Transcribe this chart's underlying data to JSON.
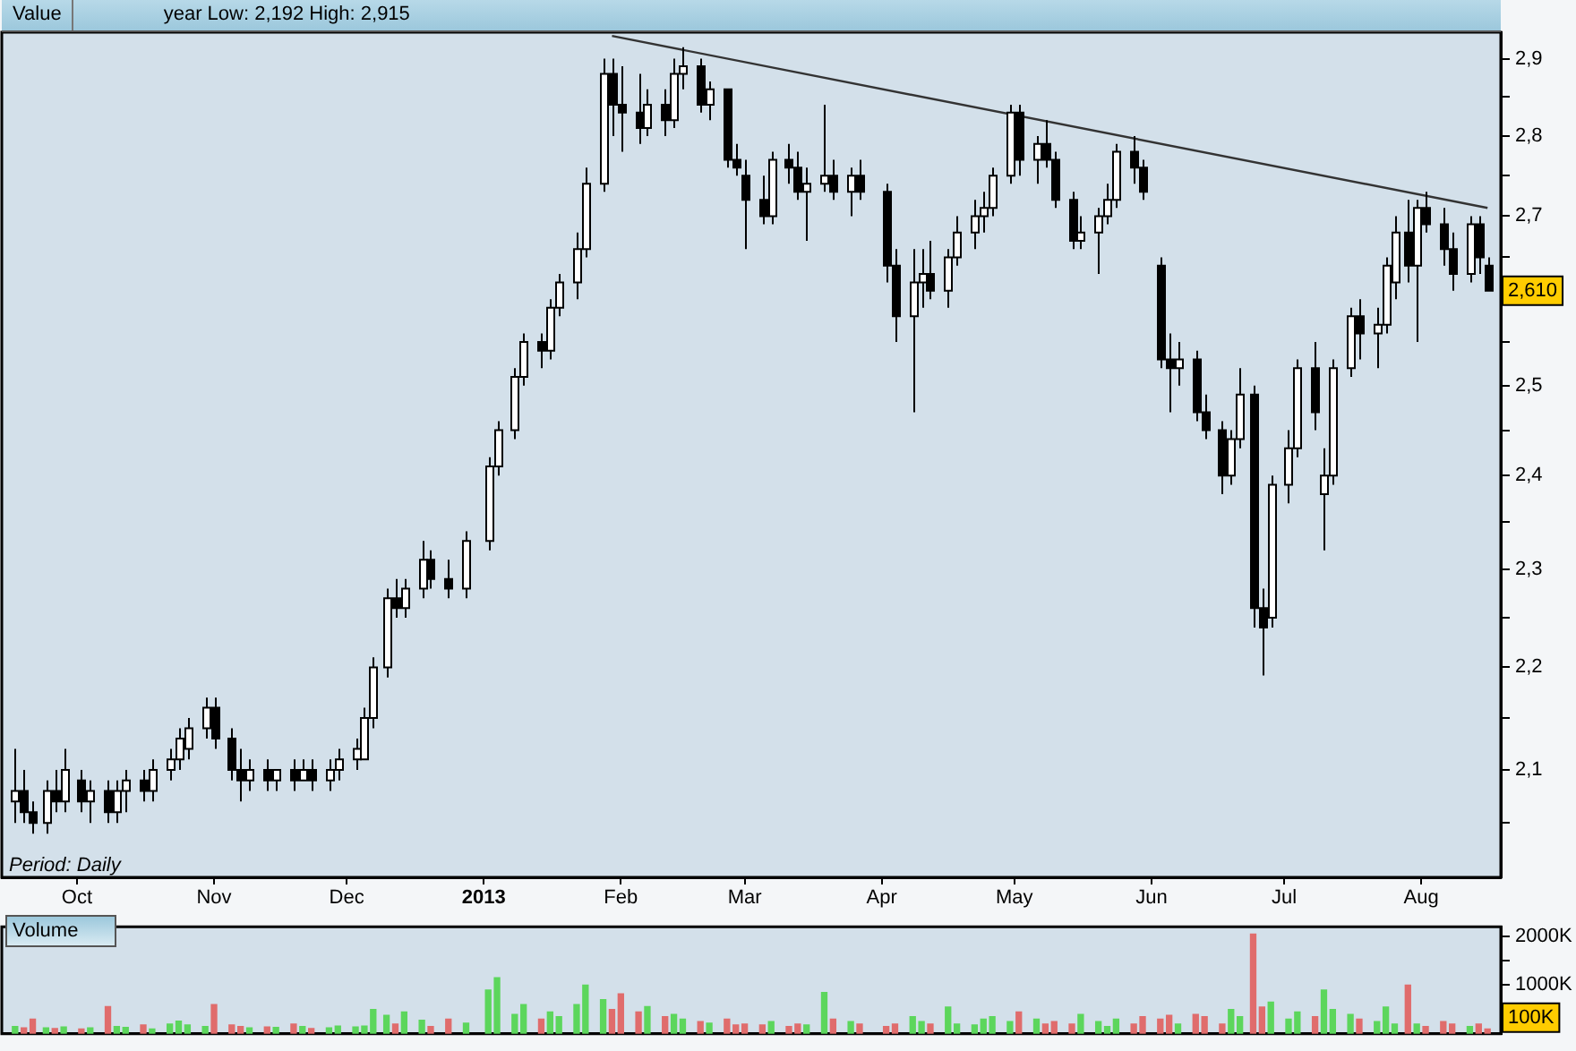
{
  "chart_data": [
    {
      "type": "candlestick",
      "title": "Value",
      "subtitle": "year Low: 2,192 High: 2,915",
      "log": true,
      "legend": false,
      "x": [
        "2012-09-17",
        "2012-09-19",
        "2012-09-21",
        "2012-09-24",
        "2012-09-26",
        "2012-09-28",
        "2012-10-02",
        "2012-10-04",
        "2012-10-08",
        "2012-10-10",
        "2012-10-12",
        "2012-10-16",
        "2012-10-18",
        "2012-10-22",
        "2012-10-24",
        "2012-10-26",
        "2012-10-30",
        "2012-11-01",
        "2012-11-05",
        "2012-11-07",
        "2012-11-09",
        "2012-11-13",
        "2012-11-15",
        "2012-11-19",
        "2012-11-21",
        "2012-11-23",
        "2012-11-27",
        "2012-11-29",
        "2012-12-03",
        "2012-12-05",
        "2012-12-07",
        "2012-12-10",
        "2012-12-12",
        "2012-12-14",
        "2012-12-18",
        "2012-12-20",
        "2012-12-24",
        "2012-12-28",
        "2013-01-02",
        "2013-01-04",
        "2013-01-08",
        "2013-01-10",
        "2013-01-14",
        "2013-01-16",
        "2013-01-18",
        "2013-01-22",
        "2013-01-24",
        "2013-01-28",
        "2013-01-30",
        "2013-02-01",
        "2013-02-05",
        "2013-02-07",
        "2013-02-11",
        "2013-02-13",
        "2013-02-15",
        "2013-02-19",
        "2013-02-21",
        "2013-02-25",
        "2013-02-27",
        "2013-03-01",
        "2013-03-05",
        "2013-03-07",
        "2013-03-11",
        "2013-03-13",
        "2013-03-15",
        "2013-03-19",
        "2013-03-21",
        "2013-03-25",
        "2013-03-27",
        "2013-04-02",
        "2013-04-04",
        "2013-04-08",
        "2013-04-10",
        "2013-04-12",
        "2013-04-16",
        "2013-04-18",
        "2013-04-22",
        "2013-04-24",
        "2013-04-26",
        "2013-04-30",
        "2013-05-02",
        "2013-05-06",
        "2013-05-08",
        "2013-05-10",
        "2013-05-14",
        "2013-05-16",
        "2013-05-20",
        "2013-05-22",
        "2013-05-24",
        "2013-05-28",
        "2013-05-30",
        "2013-06-03",
        "2013-06-05",
        "2013-06-07",
        "2013-06-11",
        "2013-06-13",
        "2013-06-17",
        "2013-06-19",
        "2013-06-21",
        "2013-06-24",
        "2013-06-26",
        "2013-06-28",
        "2013-07-02",
        "2013-07-04",
        "2013-07-08",
        "2013-07-10",
        "2013-07-12",
        "2013-07-16",
        "2013-07-18",
        "2013-07-22",
        "2013-07-24",
        "2013-07-26",
        "2013-07-29",
        "2013-07-31",
        "2013-08-02",
        "2013-08-06",
        "2013-08-08",
        "2013-08-12",
        "2013-08-14",
        "2013-08-16"
      ],
      "ohlc": [
        [
          2.07,
          2.12,
          2.05,
          2.08
        ],
        [
          2.08,
          2.1,
          2.05,
          2.06
        ],
        [
          2.06,
          2.07,
          2.04,
          2.05
        ],
        [
          2.05,
          2.09,
          2.04,
          2.08
        ],
        [
          2.08,
          2.1,
          2.06,
          2.07
        ],
        [
          2.07,
          2.12,
          2.06,
          2.1
        ],
        [
          2.09,
          2.1,
          2.06,
          2.07
        ],
        [
          2.07,
          2.09,
          2.05,
          2.08
        ],
        [
          2.08,
          2.09,
          2.05,
          2.06
        ],
        [
          2.06,
          2.09,
          2.05,
          2.08
        ],
        [
          2.08,
          2.1,
          2.06,
          2.09
        ],
        [
          2.09,
          2.1,
          2.07,
          2.08
        ],
        [
          2.08,
          2.11,
          2.07,
          2.1
        ],
        [
          2.1,
          2.12,
          2.09,
          2.11
        ],
        [
          2.11,
          2.14,
          2.1,
          2.13
        ],
        [
          2.12,
          2.15,
          2.11,
          2.14
        ],
        [
          2.14,
          2.17,
          2.13,
          2.16
        ],
        [
          2.16,
          2.17,
          2.12,
          2.13
        ],
        [
          2.13,
          2.14,
          2.09,
          2.1
        ],
        [
          2.1,
          2.12,
          2.07,
          2.09
        ],
        [
          2.09,
          2.11,
          2.08,
          2.1
        ],
        [
          2.1,
          2.11,
          2.08,
          2.09
        ],
        [
          2.09,
          2.1,
          2.08,
          2.1
        ],
        [
          2.1,
          2.11,
          2.08,
          2.09
        ],
        [
          2.09,
          2.11,
          2.09,
          2.1
        ],
        [
          2.1,
          2.11,
          2.08,
          2.09
        ],
        [
          2.09,
          2.11,
          2.08,
          2.1
        ],
        [
          2.1,
          2.12,
          2.09,
          2.11
        ],
        [
          2.11,
          2.13,
          2.1,
          2.12
        ],
        [
          2.11,
          2.16,
          2.11,
          2.15
        ],
        [
          2.15,
          2.21,
          2.14,
          2.2
        ],
        [
          2.2,
          2.28,
          2.19,
          2.27
        ],
        [
          2.27,
          2.29,
          2.25,
          2.26
        ],
        [
          2.26,
          2.29,
          2.25,
          2.28
        ],
        [
          2.28,
          2.33,
          2.27,
          2.31
        ],
        [
          2.31,
          2.32,
          2.28,
          2.29
        ],
        [
          2.29,
          2.31,
          2.27,
          2.28
        ],
        [
          2.28,
          2.34,
          2.27,
          2.33
        ],
        [
          2.33,
          2.42,
          2.32,
          2.41
        ],
        [
          2.41,
          2.46,
          2.4,
          2.45
        ],
        [
          2.45,
          2.52,
          2.44,
          2.51
        ],
        [
          2.51,
          2.56,
          2.5,
          2.55
        ],
        [
          2.55,
          2.56,
          2.52,
          2.54
        ],
        [
          2.54,
          2.6,
          2.53,
          2.59
        ],
        [
          2.59,
          2.63,
          2.58,
          2.62
        ],
        [
          2.62,
          2.68,
          2.6,
          2.66
        ],
        [
          2.66,
          2.76,
          2.65,
          2.74
        ],
        [
          2.74,
          2.9,
          2.73,
          2.88
        ],
        [
          2.88,
          2.9,
          2.8,
          2.84
        ],
        [
          2.84,
          2.89,
          2.78,
          2.83
        ],
        [
          2.83,
          2.88,
          2.79,
          2.81
        ],
        [
          2.81,
          2.86,
          2.8,
          2.84
        ],
        [
          2.84,
          2.86,
          2.8,
          2.82
        ],
        [
          2.82,
          2.9,
          2.81,
          2.88
        ],
        [
          2.88,
          2.915,
          2.86,
          2.89
        ],
        [
          2.89,
          2.9,
          2.83,
          2.84
        ],
        [
          2.84,
          2.87,
          2.82,
          2.86
        ],
        [
          2.86,
          2.86,
          2.76,
          2.77
        ],
        [
          2.77,
          2.79,
          2.75,
          2.76
        ],
        [
          2.75,
          2.77,
          2.66,
          2.72
        ],
        [
          2.72,
          2.75,
          2.69,
          2.7
        ],
        [
          2.7,
          2.78,
          2.69,
          2.77
        ],
        [
          2.77,
          2.79,
          2.74,
          2.76
        ],
        [
          2.76,
          2.78,
          2.72,
          2.73
        ],
        [
          2.73,
          2.76,
          2.67,
          2.74
        ],
        [
          2.74,
          2.84,
          2.73,
          2.75
        ],
        [
          2.75,
          2.77,
          2.72,
          2.73
        ],
        [
          2.73,
          2.76,
          2.7,
          2.75
        ],
        [
          2.75,
          2.77,
          2.72,
          2.73
        ],
        [
          2.73,
          2.74,
          2.62,
          2.64
        ],
        [
          2.64,
          2.66,
          2.55,
          2.58
        ],
        [
          2.58,
          2.66,
          2.47,
          2.62
        ],
        [
          2.62,
          2.66,
          2.59,
          2.63
        ],
        [
          2.63,
          2.67,
          2.6,
          2.61
        ],
        [
          2.61,
          2.66,
          2.59,
          2.65
        ],
        [
          2.65,
          2.7,
          2.64,
          2.68
        ],
        [
          2.68,
          2.72,
          2.66,
          2.7
        ],
        [
          2.7,
          2.73,
          2.68,
          2.71
        ],
        [
          2.71,
          2.76,
          2.7,
          2.75
        ],
        [
          2.75,
          2.84,
          2.74,
          2.83
        ],
        [
          2.83,
          2.84,
          2.75,
          2.77
        ],
        [
          2.77,
          2.8,
          2.74,
          2.79
        ],
        [
          2.79,
          2.82,
          2.76,
          2.77
        ],
        [
          2.77,
          2.78,
          2.71,
          2.72
        ],
        [
          2.72,
          2.73,
          2.66,
          2.67
        ],
        [
          2.67,
          2.7,
          2.66,
          2.68
        ],
        [
          2.68,
          2.71,
          2.63,
          2.7
        ],
        [
          2.7,
          2.74,
          2.69,
          2.72
        ],
        [
          2.72,
          2.79,
          2.71,
          2.78
        ],
        [
          2.78,
          2.8,
          2.74,
          2.76
        ],
        [
          2.76,
          2.77,
          2.72,
          2.73
        ],
        [
          2.64,
          2.65,
          2.52,
          2.53
        ],
        [
          2.53,
          2.56,
          2.47,
          2.52
        ],
        [
          2.52,
          2.55,
          2.5,
          2.53
        ],
        [
          2.53,
          2.54,
          2.46,
          2.47
        ],
        [
          2.47,
          2.49,
          2.44,
          2.45
        ],
        [
          2.45,
          2.46,
          2.38,
          2.4
        ],
        [
          2.4,
          2.45,
          2.39,
          2.44
        ],
        [
          2.44,
          2.52,
          2.43,
          2.49
        ],
        [
          2.49,
          2.5,
          2.24,
          2.26
        ],
        [
          2.26,
          2.28,
          2.192,
          2.24
        ],
        [
          2.25,
          2.4,
          2.24,
          2.39
        ],
        [
          2.39,
          2.45,
          2.37,
          2.43
        ],
        [
          2.43,
          2.53,
          2.42,
          2.52
        ],
        [
          2.52,
          2.55,
          2.45,
          2.47
        ],
        [
          2.38,
          2.43,
          2.32,
          2.4
        ],
        [
          2.4,
          2.53,
          2.39,
          2.52
        ],
        [
          2.52,
          2.59,
          2.51,
          2.58
        ],
        [
          2.58,
          2.6,
          2.53,
          2.56
        ],
        [
          2.56,
          2.59,
          2.52,
          2.57
        ],
        [
          2.57,
          2.65,
          2.56,
          2.64
        ],
        [
          2.62,
          2.7,
          2.6,
          2.68
        ],
        [
          2.68,
          2.72,
          2.62,
          2.64
        ],
        [
          2.64,
          2.72,
          2.55,
          2.71
        ],
        [
          2.71,
          2.73,
          2.68,
          2.69
        ],
        [
          2.69,
          2.71,
          2.64,
          2.66
        ],
        [
          2.66,
          2.68,
          2.61,
          2.63
        ],
        [
          2.63,
          2.7,
          2.62,
          2.69
        ],
        [
          2.69,
          2.7,
          2.63,
          2.65
        ],
        [
          2.64,
          2.65,
          2.61,
          2.61
        ]
      ],
      "series": [
        {
          "type": "line",
          "x": [
            "2013-01-30",
            "2013-08-16"
          ],
          "values": [
            2.93,
            2.71
          ],
          "color": "#333333"
        }
      ],
      "xlim": [
        "2012-09-14",
        "2013-08-19"
      ],
      "xticks": [
        {
          "value": "2012-10-01",
          "label": "Oct"
        },
        {
          "value": "2012-11-01",
          "label": "Nov"
        },
        {
          "value": "2012-12-01",
          "label": "Dec"
        },
        {
          "value": "2013-01-01",
          "label": "2013"
        },
        {
          "value": "2013-02-01",
          "label": "Feb"
        },
        {
          "value": "2013-03-01",
          "label": "Mar"
        },
        {
          "value": "2013-04-01",
          "label": "Apr"
        },
        {
          "value": "2013-05-01",
          "label": "May"
        },
        {
          "value": "2013-06-01",
          "label": "Jun"
        },
        {
          "value": "2013-07-01",
          "label": "Jul"
        },
        {
          "value": "2013-08-01",
          "label": "Aug"
        }
      ],
      "ylim": [
        2.0,
        2.935
      ],
      "yticks": [
        {
          "value": 2.05,
          "label": null
        },
        {
          "value": 2.1,
          "label": "2,1"
        },
        {
          "value": 2.15,
          "label": null
        },
        {
          "value": 2.2,
          "label": "2,2"
        },
        {
          "value": 2.25,
          "label": null
        },
        {
          "value": 2.3,
          "label": "2,3"
        },
        {
          "value": 2.35,
          "label": null
        },
        {
          "value": 2.4,
          "label": "2,4"
        },
        {
          "value": 2.45,
          "label": null
        },
        {
          "value": 2.5,
          "label": "2,5"
        },
        {
          "value": 2.55,
          "label": null
        },
        {
          "value": 2.65,
          "label": null
        },
        {
          "value": 2.7,
          "label": "2,7"
        },
        {
          "value": 2.75,
          "label": null
        },
        {
          "value": 2.8,
          "label": "2,8"
        },
        {
          "value": 2.85,
          "label": null
        },
        {
          "value": 2.9,
          "label": "2,9"
        }
      ],
      "annotations": [
        "Period: Daily",
        {
          "text": "2,610",
          "y": 2.61
        }
      ]
    },
    {
      "type": "bar",
      "title": "Volume",
      "legend": false,
      "tick_labels": "y",
      "x": [
        "2012-09-17",
        "2012-09-19",
        "2012-09-21",
        "2012-09-24",
        "2012-09-26",
        "2012-09-28",
        "2012-10-02",
        "2012-10-04",
        "2012-10-08",
        "2012-10-10",
        "2012-10-12",
        "2012-10-16",
        "2012-10-18",
        "2012-10-22",
        "2012-10-24",
        "2012-10-26",
        "2012-10-30",
        "2012-11-01",
        "2012-11-05",
        "2012-11-07",
        "2012-11-09",
        "2012-11-13",
        "2012-11-15",
        "2012-11-19",
        "2012-11-21",
        "2012-11-23",
        "2012-11-27",
        "2012-11-29",
        "2012-12-03",
        "2012-12-05",
        "2012-12-07",
        "2012-12-10",
        "2012-12-12",
        "2012-12-14",
        "2012-12-18",
        "2012-12-20",
        "2012-12-24",
        "2012-12-28",
        "2013-01-02",
        "2013-01-04",
        "2013-01-08",
        "2013-01-10",
        "2013-01-14",
        "2013-01-16",
        "2013-01-18",
        "2013-01-22",
        "2013-01-24",
        "2013-01-28",
        "2013-01-30",
        "2013-02-01",
        "2013-02-05",
        "2013-02-07",
        "2013-02-11",
        "2013-02-13",
        "2013-02-15",
        "2013-02-19",
        "2013-02-21",
        "2013-02-25",
        "2013-02-27",
        "2013-03-01",
        "2013-03-05",
        "2013-03-07",
        "2013-03-11",
        "2013-03-13",
        "2013-03-15",
        "2013-03-19",
        "2013-03-21",
        "2013-03-25",
        "2013-03-27",
        "2013-04-02",
        "2013-04-04",
        "2013-04-08",
        "2013-04-10",
        "2013-04-12",
        "2013-04-16",
        "2013-04-18",
        "2013-04-22",
        "2013-04-24",
        "2013-04-26",
        "2013-04-30",
        "2013-05-02",
        "2013-05-06",
        "2013-05-08",
        "2013-05-10",
        "2013-05-14",
        "2013-05-16",
        "2013-05-20",
        "2013-05-22",
        "2013-05-24",
        "2013-05-28",
        "2013-05-30",
        "2013-06-03",
        "2013-06-05",
        "2013-06-07",
        "2013-06-11",
        "2013-06-13",
        "2013-06-17",
        "2013-06-19",
        "2013-06-21",
        "2013-06-24",
        "2013-06-26",
        "2013-06-28",
        "2013-07-02",
        "2013-07-04",
        "2013-07-08",
        "2013-07-10",
        "2013-07-12",
        "2013-07-16",
        "2013-07-18",
        "2013-07-22",
        "2013-07-24",
        "2013-07-26",
        "2013-07-29",
        "2013-07-31",
        "2013-08-02",
        "2013-08-06",
        "2013-08-08",
        "2013-08-12",
        "2013-08-14",
        "2013-08-16"
      ],
      "values": [
        150,
        120,
        300,
        120,
        110,
        140,
        100,
        120,
        560,
        150,
        130,
        180,
        100,
        200,
        260,
        180,
        150,
        600,
        180,
        150,
        120,
        140,
        130,
        200,
        150,
        110,
        120,
        160,
        140,
        160,
        500,
        380,
        200,
        450,
        280,
        150,
        300,
        220,
        900,
        1150,
        400,
        600,
        300,
        450,
        350,
        600,
        1000,
        700,
        500,
        820,
        450,
        560,
        350,
        400,
        300,
        250,
        220,
        300,
        180,
        200,
        180,
        250,
        150,
        200,
        180,
        850,
        300,
        250,
        200,
        150,
        200,
        350,
        250,
        200,
        550,
        200,
        180,
        300,
        350,
        250,
        450,
        300,
        200,
        250,
        200,
        400,
        250,
        150,
        300,
        200,
        350,
        300,
        380,
        200,
        400,
        350,
        200,
        500,
        350,
        2050,
        550,
        650,
        300,
        450,
        350,
        900,
        500,
        400,
        300,
        250,
        550,
        200,
        1000,
        200,
        150,
        250,
        200,
        150,
        200,
        100
      ],
      "colors": [
        "#5cd65c",
        "#e06c6c",
        "#e06c6c",
        "#5cd65c",
        "#e06c6c",
        "#5cd65c",
        "#e06c6c",
        "#5cd65c",
        "#e06c6c",
        "#5cd65c",
        "#5cd65c",
        "#e06c6c",
        "#5cd65c",
        "#5cd65c",
        "#5cd65c",
        "#5cd65c",
        "#5cd65c",
        "#e06c6c",
        "#e06c6c",
        "#e06c6c",
        "#5cd65c",
        "#e06c6c",
        "#5cd65c",
        "#e06c6c",
        "#5cd65c",
        "#e06c6c",
        "#5cd65c",
        "#5cd65c",
        "#5cd65c",
        "#5cd65c",
        "#5cd65c",
        "#5cd65c",
        "#e06c6c",
        "#5cd65c",
        "#5cd65c",
        "#e06c6c",
        "#e06c6c",
        "#5cd65c",
        "#5cd65c",
        "#5cd65c",
        "#5cd65c",
        "#5cd65c",
        "#e06c6c",
        "#5cd65c",
        "#5cd65c",
        "#5cd65c",
        "#5cd65c",
        "#5cd65c",
        "#e06c6c",
        "#e06c6c",
        "#e06c6c",
        "#5cd65c",
        "#e06c6c",
        "#5cd65c",
        "#5cd65c",
        "#e06c6c",
        "#5cd65c",
        "#e06c6c",
        "#e06c6c",
        "#e06c6c",
        "#e06c6c",
        "#5cd65c",
        "#e06c6c",
        "#e06c6c",
        "#5cd65c",
        "#5cd65c",
        "#e06c6c",
        "#5cd65c",
        "#e06c6c",
        "#e06c6c",
        "#e06c6c",
        "#5cd65c",
        "#5cd65c",
        "#e06c6c",
        "#5cd65c",
        "#5cd65c",
        "#5cd65c",
        "#5cd65c",
        "#5cd65c",
        "#5cd65c",
        "#e06c6c",
        "#5cd65c",
        "#e06c6c",
        "#e06c6c",
        "#e06c6c",
        "#5cd65c",
        "#5cd65c",
        "#5cd65c",
        "#5cd65c",
        "#e06c6c",
        "#e06c6c",
        "#e06c6c",
        "#e06c6c",
        "#5cd65c",
        "#e06c6c",
        "#e06c6c",
        "#e06c6c",
        "#5cd65c",
        "#5cd65c",
        "#e06c6c",
        "#e06c6c",
        "#5cd65c",
        "#5cd65c",
        "#5cd65c",
        "#e06c6c",
        "#5cd65c",
        "#5cd65c",
        "#5cd65c",
        "#e06c6c",
        "#5cd65c",
        "#5cd65c",
        "#5cd65c",
        "#e06c6c",
        "#5cd65c",
        "#e06c6c",
        "#e06c6c",
        "#e06c6c",
        "#5cd65c",
        "#e06c6c",
        "#e06c6c"
      ],
      "xlim": [
        "2012-09-14",
        "2013-08-19"
      ],
      "ylim": [
        0,
        2200
      ],
      "yticks": [
        {
          "value": 500,
          "label": null
        },
        {
          "value": 1000,
          "label": "1000K"
        },
        {
          "value": 1500,
          "label": null
        },
        {
          "value": 2000,
          "label": "2000K"
        }
      ],
      "annotations": [
        "100K"
      ]
    }
  ]
}
